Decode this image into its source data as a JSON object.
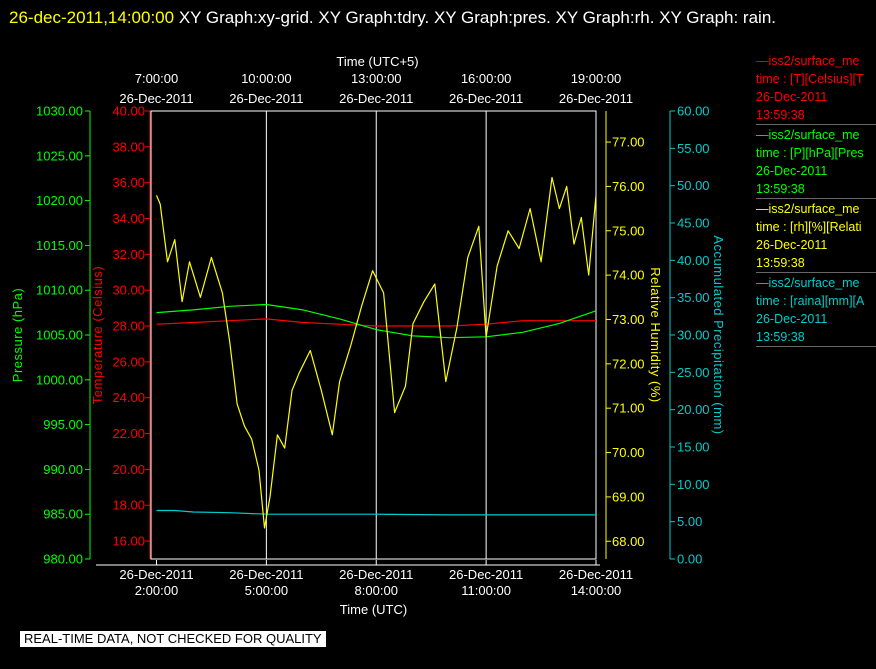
{
  "header": {
    "datetime": "26-dec-2011,14:00:00",
    "graph_list": " XY Graph:xy-grid.  XY Graph:tdry.  XY Graph:pres.  XY Graph:rh.  XY Graph: rain."
  },
  "banner": "REAL-TIME DATA, NOT CHECKED FOR QUALITY",
  "colors": {
    "background": "#000000",
    "pressure": "#00ff00",
    "temperature": "#ff0000",
    "humidity": "#ffff00",
    "rain": "#00cccc",
    "grid": "#ffffff"
  },
  "legend": [
    {
      "color": "#ff0000",
      "title": "—iss2/surface_me",
      "field": "time : [T][Celsius][T",
      "date": "26-Dec-2011",
      "time": "13:59:38"
    },
    {
      "color": "#00ff00",
      "title": "—iss2/surface_me",
      "field": "time : [P][hPa][Pres",
      "date": "26-Dec-2011",
      "time": "13:59:38"
    },
    {
      "color": "#ffff00",
      "title": "—iss2/surface_me",
      "field": "time : [rh][%][Relati",
      "date": "26-Dec-2011",
      "time": "13:59:38"
    },
    {
      "color": "#00cccc",
      "title": "—iss2/surface_me",
      "field": "time : [raina][mm][A",
      "date": "26-Dec-2011",
      "time": "13:59:38"
    }
  ],
  "chart_data": {
    "type": "line",
    "top_axis_label": "Time (UTC+5)",
    "bottom_axis_label": "Time (UTC)",
    "xlim": [
      1.85,
      14.0
    ],
    "x_bottom_ticks": [
      {
        "x": 2,
        "date": "26-Dec-2011",
        "time": "2:00:00"
      },
      {
        "x": 5,
        "date": "26-Dec-2011",
        "time": "5:00:00"
      },
      {
        "x": 8,
        "date": "26-Dec-2011",
        "time": "8:00:00"
      },
      {
        "x": 11,
        "date": "26-Dec-2011",
        "time": "11:00:00"
      },
      {
        "x": 14,
        "date": "26-Dec-2011",
        "time": "14:00:00"
      }
    ],
    "x_top_ticks": [
      {
        "x": 2,
        "time": "7:00:00",
        "date": "26-Dec-2011"
      },
      {
        "x": 5,
        "time": "10:00:00",
        "date": "26-Dec-2011"
      },
      {
        "x": 8,
        "time": "13:00:00",
        "date": "26-Dec-2011"
      },
      {
        "x": 11,
        "time": "16:00:00",
        "date": "26-Dec-2011"
      },
      {
        "x": 14,
        "time": "19:00:00",
        "date": "26-Dec-2011"
      }
    ],
    "grid_x": [
      5,
      8,
      11
    ],
    "axes": [
      {
        "id": "pressure",
        "label": "Pressure (hPa)",
        "color": "#00ff00",
        "ylim": [
          980,
          1030
        ],
        "ticks": [
          "980.00",
          "985.00",
          "990.00",
          "995.00",
          "1000.00",
          "1005.00",
          "1010.00",
          "1015.00",
          "1020.00",
          "1025.00",
          "1030.00"
        ]
      },
      {
        "id": "temperature",
        "label": "Temperature (Celsius)",
        "color": "#ff0000",
        "ylim": [
          15,
          40
        ],
        "ticks": [
          "16.00",
          "18.00",
          "20.00",
          "22.00",
          "24.00",
          "26.00",
          "28.00",
          "30.00",
          "32.00",
          "34.00",
          "36.00",
          "38.00",
          "40.00"
        ]
      },
      {
        "id": "humidity",
        "label": "Relative Humidity (%)",
        "color": "#ffff00",
        "ylim": [
          67.6,
          77.7
        ],
        "ticks": [
          "68.00",
          "69.00",
          "70.00",
          "71.00",
          "72.00",
          "73.00",
          "74.00",
          "75.00",
          "76.00",
          "77.00"
        ]
      },
      {
        "id": "rain",
        "label": "Accumulated Precipitation (mm)",
        "color": "#00cccc",
        "ylim": [
          0,
          60
        ],
        "ticks": [
          "0.00",
          "5.00",
          "10.00",
          "15.00",
          "20.00",
          "25.00",
          "30.00",
          "35.00",
          "40.00",
          "45.00",
          "50.00",
          "55.00",
          "60.00"
        ]
      }
    ],
    "series": [
      {
        "axis": "temperature",
        "color": "#ff0000",
        "x": [
          2.0,
          3.0,
          4.0,
          5.0,
          6.0,
          7.0,
          8.0,
          9.0,
          10.0,
          11.0,
          12.0,
          13.0,
          14.0
        ],
        "y": [
          28.1,
          28.2,
          28.3,
          28.4,
          28.2,
          28.1,
          28.0,
          28.0,
          28.0,
          28.1,
          28.3,
          28.3,
          28.3
        ]
      },
      {
        "axis": "pressure",
        "color": "#00ff00",
        "x": [
          2.0,
          3.0,
          4.0,
          5.0,
          6.0,
          7.0,
          8.0,
          9.0,
          10.0,
          11.0,
          12.0,
          13.0,
          14.0
        ],
        "y": [
          1007.5,
          1007.8,
          1008.2,
          1008.4,
          1007.8,
          1006.8,
          1005.6,
          1004.9,
          1004.7,
          1004.8,
          1005.3,
          1006.3,
          1007.7
        ]
      },
      {
        "axis": "rain",
        "color": "#00cccc",
        "x": [
          2.0,
          2.5,
          3.0,
          4.0,
          5.0,
          6.0,
          8.0,
          10.0,
          12.0,
          14.0
        ],
        "y": [
          6.5,
          6.5,
          6.3,
          6.2,
          6.0,
          6.0,
          6.0,
          5.9,
          5.9,
          5.9
        ]
      },
      {
        "axis": "humidity",
        "color": "#ffff00",
        "x": [
          2.0,
          2.1,
          2.3,
          2.5,
          2.7,
          2.9,
          3.2,
          3.5,
          3.8,
          4.0,
          4.2,
          4.4,
          4.6,
          4.8,
          4.95,
          5.1,
          5.3,
          5.5,
          5.7,
          5.9,
          6.2,
          6.5,
          6.8,
          7.0,
          7.3,
          7.6,
          7.9,
          8.2,
          8.5,
          8.8,
          9.0,
          9.3,
          9.6,
          9.9,
          10.2,
          10.5,
          10.8,
          11.0,
          11.3,
          11.6,
          11.9,
          12.2,
          12.5,
          12.8,
          13.0,
          13.2,
          13.4,
          13.6,
          13.8,
          14.0
        ],
        "y": [
          75.8,
          75.6,
          74.3,
          74.8,
          73.4,
          74.3,
          73.5,
          74.4,
          73.6,
          72.5,
          71.1,
          70.6,
          70.3,
          69.6,
          68.3,
          69.0,
          70.4,
          70.1,
          71.4,
          71.8,
          72.3,
          71.4,
          70.4,
          71.6,
          72.4,
          73.3,
          74.1,
          73.6,
          70.9,
          71.5,
          72.9,
          73.4,
          73.8,
          71.6,
          72.8,
          74.4,
          75.1,
          72.6,
          74.2,
          75.0,
          74.6,
          75.5,
          74.3,
          76.2,
          75.5,
          76.0,
          74.7,
          75.3,
          74.0,
          75.8
        ]
      }
    ]
  }
}
